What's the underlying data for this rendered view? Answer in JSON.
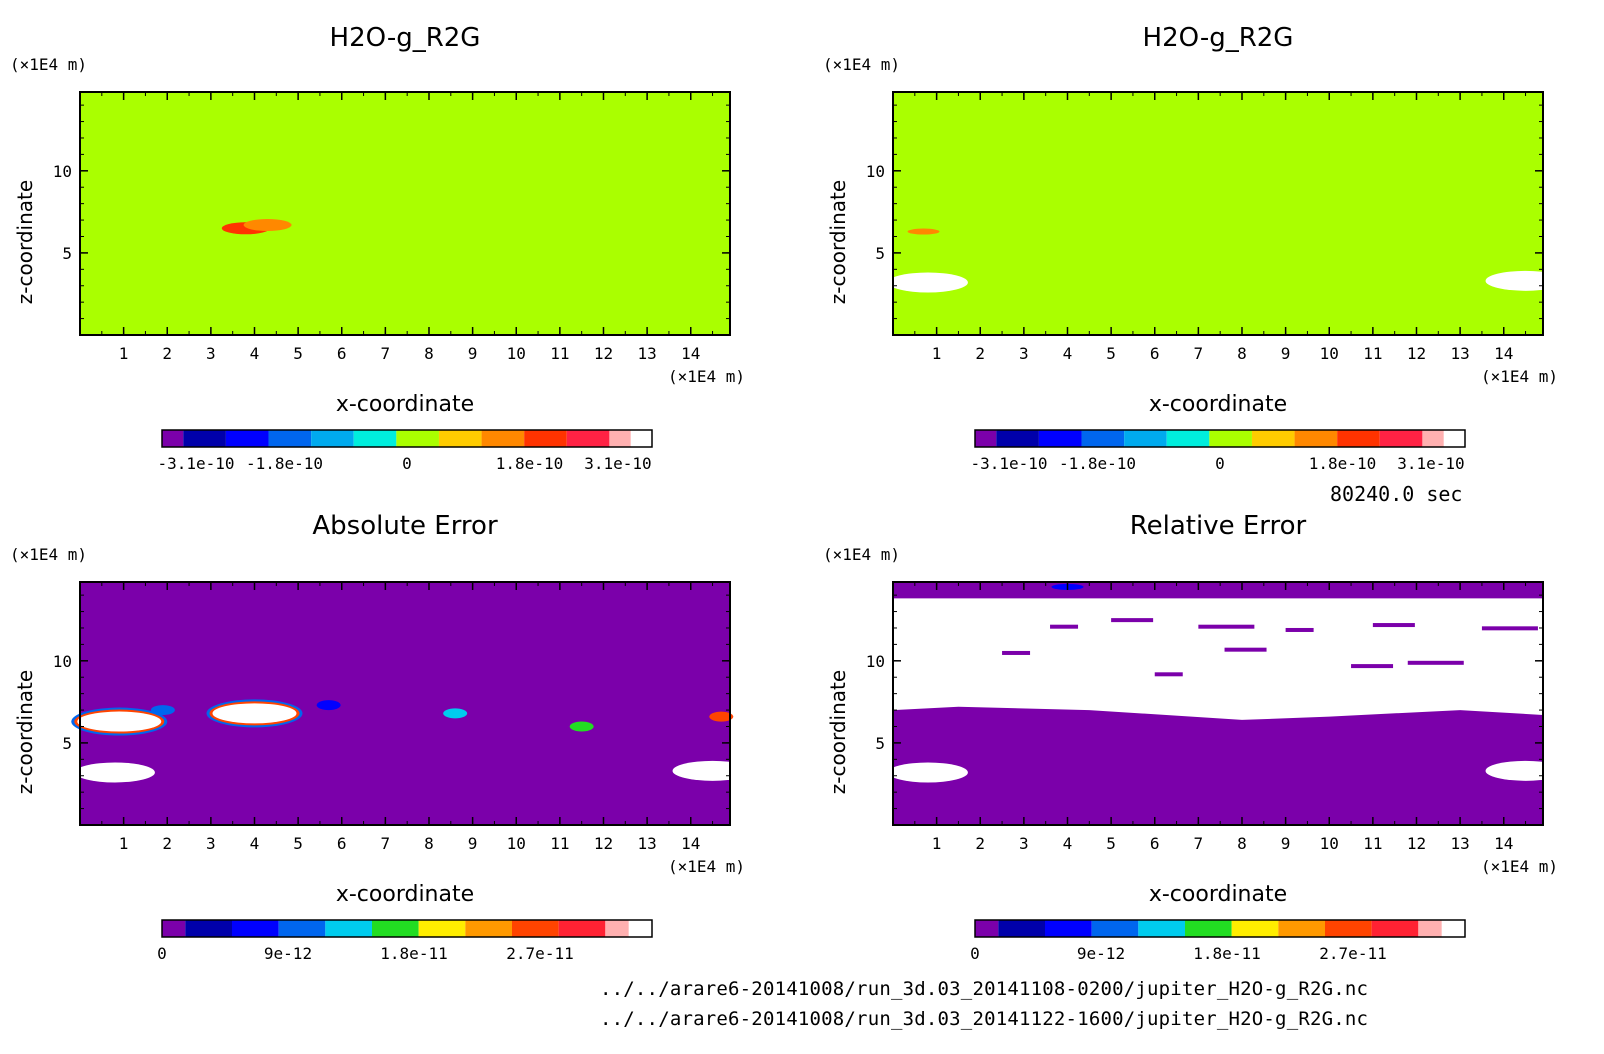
{
  "panels": [
    {
      "id": "top-left",
      "title": "H2O-g_R2G",
      "xlabel": "x-coordinate",
      "ylabel": "z-coordinate",
      "x_unit": "(×1E4 m)",
      "y_unit": "(×1E4 m)",
      "x_ticks": [
        "1",
        "2",
        "3",
        "4",
        "5",
        "6",
        "7",
        "8",
        "9",
        "10",
        "11",
        "12",
        "13",
        "14"
      ],
      "y_ticks": [
        "5",
        "10"
      ],
      "background": "#aaff00",
      "colorbar": {
        "colors": [
          "#7b00aa",
          "#0000aa",
          "#0000ff",
          "#0066ee",
          "#00aaee",
          "#00eedd",
          "#aaff00",
          "#ffcc00",
          "#ff8800",
          "#ff3300",
          "#ff2244",
          "#ffb0b0"
        ],
        "tick_labels": [
          "-3.1e-10",
          "-1.8e-10",
          "0",
          "1.8e-10",
          "3.1e-10"
        ],
        "tick_values": [
          -3.1e-10,
          -1.8e-10,
          0,
          1.8e-10,
          3.1e-10
        ],
        "range": [
          -3.6e-10,
          3.6e-10
        ]
      }
    },
    {
      "id": "top-right",
      "title": "H2O-g_R2G",
      "xlabel": "x-coordinate",
      "ylabel": "z-coordinate",
      "x_unit": "(×1E4 m)",
      "y_unit": "(×1E4 m)",
      "x_ticks": [
        "1",
        "2",
        "3",
        "4",
        "5",
        "6",
        "7",
        "8",
        "9",
        "10",
        "11",
        "12",
        "13",
        "14"
      ],
      "y_ticks": [
        "5",
        "10"
      ],
      "background": "#aaff00",
      "colorbar": {
        "colors": [
          "#7b00aa",
          "#0000aa",
          "#0000ff",
          "#0066ee",
          "#00aaee",
          "#00eedd",
          "#aaff00",
          "#ffcc00",
          "#ff8800",
          "#ff3300",
          "#ff2244",
          "#ffb0b0"
        ],
        "tick_labels": [
          "-3.1e-10",
          "-1.8e-10",
          "0",
          "1.8e-10",
          "3.1e-10"
        ],
        "tick_values": [
          -3.1e-10,
          -1.8e-10,
          0,
          1.8e-10,
          3.1e-10
        ],
        "range": [
          -3.6e-10,
          3.6e-10
        ]
      }
    },
    {
      "id": "bottom-left",
      "title": "Absolute Error",
      "xlabel": "x-coordinate",
      "ylabel": "z-coordinate",
      "x_unit": "(×1E4 m)",
      "y_unit": "(×1E4 m)",
      "x_ticks": [
        "1",
        "2",
        "3",
        "4",
        "5",
        "6",
        "7",
        "8",
        "9",
        "10",
        "11",
        "12",
        "13",
        "14"
      ],
      "y_ticks": [
        "5",
        "10"
      ],
      "background": "#7b00aa",
      "colorbar": {
        "colors": [
          "#7b00aa",
          "#0000aa",
          "#0000ff",
          "#0066ee",
          "#00ccee",
          "#22dd22",
          "#ffee00",
          "#ff9900",
          "#ff4400",
          "#ff2233",
          "#ffb0b0"
        ],
        "tick_labels": [
          "0",
          "9e-12",
          "1.8e-11",
          "2.7e-11"
        ],
        "tick_values": [
          0,
          9e-12,
          1.8e-11,
          2.7e-11
        ],
        "range": [
          0,
          3.5e-11
        ]
      }
    },
    {
      "id": "bottom-right",
      "title": "Relative Error",
      "xlabel": "x-coordinate",
      "ylabel": "z-coordinate",
      "x_unit": "(×1E4 m)",
      "y_unit": "(×1E4 m)",
      "x_ticks": [
        "1",
        "2",
        "3",
        "4",
        "5",
        "6",
        "7",
        "8",
        "9",
        "10",
        "11",
        "12",
        "13",
        "14"
      ],
      "y_ticks": [
        "5",
        "10"
      ],
      "background": "#7b00aa",
      "colorbar": {
        "colors": [
          "#7b00aa",
          "#0000aa",
          "#0000ff",
          "#0066ee",
          "#00ccee",
          "#22dd22",
          "#ffee00",
          "#ff9900",
          "#ff4400",
          "#ff2233",
          "#ffb0b0"
        ],
        "tick_labels": [
          "0",
          "9e-12",
          "1.8e-11",
          "2.7e-11"
        ],
        "tick_values": [
          0,
          9e-12,
          1.8e-11,
          2.7e-11
        ],
        "range": [
          0,
          3.5e-11
        ]
      }
    }
  ],
  "time_label": "80240.0 sec",
  "files": [
    "../../arare6-20141008/run_3d.03_20141108-0200/jupiter_H2O-g_R2G.nc",
    "../../arare6-20141008/run_3d.03_20141122-1600/jupiter_H2O-g_R2G.nc"
  ],
  "chart_data": [
    {
      "type": "heatmap",
      "title": "H2O-g_R2G",
      "xlabel": "x-coordinate (×1E4 m)",
      "ylabel": "z-coordinate (×1E4 m)",
      "xlim": [
        0,
        14.9
      ],
      "ylim": [
        0,
        14.8
      ],
      "background_value": 0,
      "features": [
        {
          "x": 3.8,
          "z": 6.5,
          "value": 2.4e-10,
          "color": "#ff3300"
        },
        {
          "x": 4.3,
          "z": 6.7,
          "value": 1.5e-10,
          "color": "#ff8800"
        }
      ],
      "colorbar_ticks": [
        -3.1e-10,
        -1.8e-10,
        0,
        1.8e-10,
        3.1e-10
      ]
    },
    {
      "type": "heatmap",
      "title": "H2O-g_R2G",
      "xlabel": "x-coordinate (×1E4 m)",
      "ylabel": "z-coordinate (×1E4 m)",
      "xlim": [
        0,
        14.9
      ],
      "ylim": [
        0,
        14.8
      ],
      "background_value": 0,
      "features": [
        {
          "x": 0.7,
          "z": 6.3,
          "value": 1e-10,
          "color": "#ff8800"
        },
        {
          "x": 0.8,
          "z": 3.2,
          "value": null,
          "color": "#ffffff"
        },
        {
          "x": 14.5,
          "z": 3.3,
          "value": null,
          "color": "#ffffff"
        }
      ],
      "colorbar_ticks": [
        -3.1e-10,
        -1.8e-10,
        0,
        1.8e-10,
        3.1e-10
      ]
    },
    {
      "type": "heatmap",
      "title": "Absolute Error",
      "xlabel": "x-coordinate (×1E4 m)",
      "ylabel": "z-coordinate (×1E4 m)",
      "xlim": [
        0,
        14.9
      ],
      "ylim": [
        0,
        14.8
      ],
      "background_value": 0,
      "features": [
        {
          "x": 0.9,
          "z": 6.3,
          "value": 3.5e-11,
          "color": "#ffffff"
        },
        {
          "x": 1.9,
          "z": 7.0,
          "value": 9e-12,
          "color": "#0066ee"
        },
        {
          "x": 4.0,
          "z": 6.8,
          "value": 3.5e-11,
          "color": "#ffffff"
        },
        {
          "x": 5.7,
          "z": 7.3,
          "value": 9e-12,
          "color": "#0000ff"
        },
        {
          "x": 8.6,
          "z": 6.8,
          "value": 1.2e-11,
          "color": "#00ccee"
        },
        {
          "x": 11.5,
          "z": 6.0,
          "value": 1.8e-11,
          "color": "#22dd22"
        },
        {
          "x": 14.7,
          "z": 6.6,
          "value": 2.7e-11,
          "color": "#ff4400"
        },
        {
          "x": 0.8,
          "z": 3.2,
          "value": null,
          "color": "#ffffff"
        },
        {
          "x": 14.5,
          "z": 3.3,
          "value": null,
          "color": "#ffffff"
        }
      ],
      "colorbar_ticks": [
        0,
        9e-12,
        1.8e-11,
        2.7e-11
      ]
    },
    {
      "type": "heatmap",
      "title": "Relative Error",
      "xlabel": "x-coordinate (×1E4 m)",
      "ylabel": "z-coordinate (×1E4 m)",
      "xlim": [
        0,
        14.9
      ],
      "ylim": [
        0,
        14.8
      ],
      "background_value": 0,
      "features": [
        {
          "x": 7.5,
          "z": 10.3,
          "value": null,
          "color": "#ffffff",
          "note": "large blank band z≈6–13.8"
        },
        {
          "x": 4.0,
          "z": 14.5,
          "value": 9e-12,
          "color": "#0000ff"
        },
        {
          "x": 0.8,
          "z": 3.2,
          "value": null,
          "color": "#ffffff"
        },
        {
          "x": 14.5,
          "z": 3.3,
          "value": null,
          "color": "#ffffff"
        }
      ],
      "colorbar_ticks": [
        0,
        9e-12,
        1.8e-11,
        2.7e-11
      ]
    }
  ]
}
